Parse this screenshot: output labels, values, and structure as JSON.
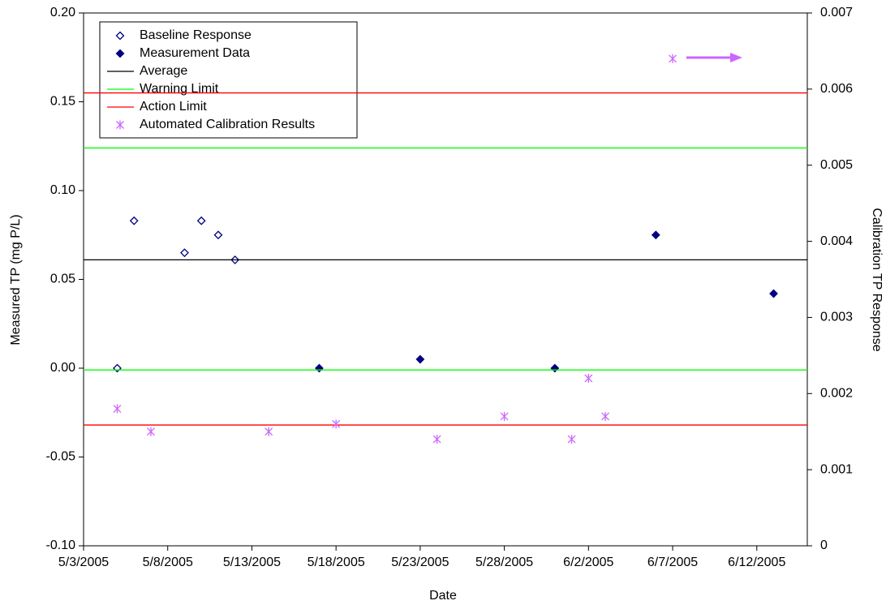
{
  "chart_data": {
    "type": "scatter",
    "x_label": "Date",
    "y_label": "Measured TP (mg P/L)",
    "y2_label": "Calibration TP Response",
    "xlim": [
      "5/3/2005",
      "6/15/2005"
    ],
    "xticks": [
      "5/3/2005",
      "5/8/2005",
      "5/13/2005",
      "5/18/2005",
      "5/23/2005",
      "5/28/2005",
      "6/2/2005",
      "6/7/2005",
      "6/12/2005"
    ],
    "ylim": [
      -0.1,
      0.2
    ],
    "yticks": [
      {
        "value": -0.1,
        "label": "-0.10"
      },
      -0.05,
      {
        "value": 0,
        "label": "0.00"
      },
      0.05,
      {
        "value": 0.1,
        "label": "0.10"
      },
      0.15,
      {
        "value": 0.2,
        "label": "0.20"
      }
    ],
    "y2lim": [
      0,
      0.007
    ],
    "y2ticks": [
      0,
      0.001,
      0.002,
      0.003,
      0.004,
      0.005,
      0.006,
      0.007
    ],
    "legend": "upper-left",
    "series": [
      {
        "name": "Baseline Response",
        "color": "#000080",
        "marker": "diamond-open",
        "x": [
          "5/5/2005",
          "5/6/2005",
          "5/9/2005",
          "5/10/2005",
          "5/11/2005",
          "5/12/2005"
        ],
        "values": [
          0,
          0.083,
          0.065,
          0.083,
          0.075,
          0.061
        ]
      },
      {
        "name": "Measurement Data",
        "color": "#000080",
        "marker": "diamond",
        "x": [
          "5/17/2005",
          "5/23/2005",
          "5/31/2005",
          "6/6/2005",
          "6/13/2005"
        ],
        "values": [
          0,
          0.005,
          0,
          0.075,
          0.042
        ]
      },
      {
        "name": "Average",
        "color": "#000000",
        "marker": "hline",
        "levels": [
          0.061
        ]
      },
      {
        "name": "Warning Limit",
        "color": "#00ff00",
        "marker": "hline",
        "levels": [
          0.124,
          -0.001
        ]
      },
      {
        "name": "Action Limit",
        "color": "#ff0000",
        "marker": "hline",
        "levels": [
          0.155,
          -0.032
        ]
      },
      {
        "name": "Automated Calibration Results",
        "color": "#cc66ff",
        "marker": "asterisk",
        "axis": "y2",
        "x": [
          "5/5/2005",
          "5/7/2005",
          "5/14/2005",
          "5/18/2005",
          "5/24/2005",
          "5/28/2005",
          "6/1/2005",
          "6/2/2005",
          "6/3/2005",
          "6/7/2005"
        ],
        "values": [
          0.0018,
          0.0015,
          0.0015,
          0.0016,
          0.0014,
          0.0017,
          0.0014,
          0.0022,
          0.0017,
          0.0064
        ]
      }
    ]
  }
}
